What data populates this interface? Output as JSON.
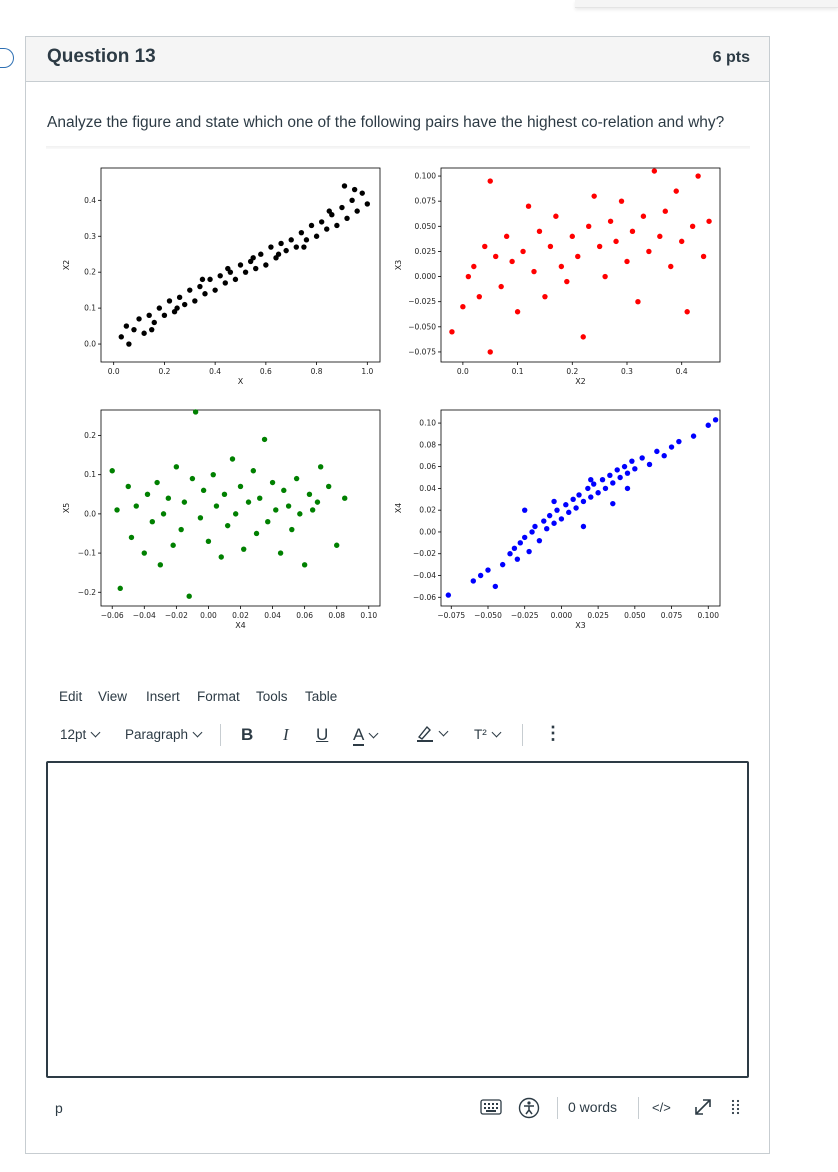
{
  "question": {
    "title": "Question 13",
    "points": "6 pts",
    "text": "Analyze the figure and state which one of the following pairs have the highest co-relation and why?"
  },
  "colors": {
    "black": "#000000",
    "red": "#ff0000",
    "green": "#008000",
    "blue": "#0000ff",
    "text": "#2d3b45",
    "border": "#c7cdd1"
  },
  "chart_data": [
    {
      "type": "scatter",
      "xlabel": "X",
      "ylabel": "X2",
      "color": "#000000",
      "xlim": [
        -0.05,
        1.05
      ],
      "ylim": [
        -0.05,
        0.49
      ],
      "xticks": [
        "0.0",
        "0.2",
        "0.4",
        "0.6",
        "0.8",
        "1.0"
      ],
      "xtick_values": [
        0,
        0.2,
        0.4,
        0.6,
        0.8,
        1.0
      ],
      "yticks": [
        "0.0",
        "0.1",
        "0.2",
        "0.3",
        "0.4"
      ],
      "ytick_values": [
        0,
        0.1,
        0.2,
        0.3,
        0.4
      ],
      "points": [
        [
          0.03,
          0.02
        ],
        [
          0.05,
          0.05
        ],
        [
          0.06,
          0.0
        ],
        [
          0.08,
          0.04
        ],
        [
          0.1,
          0.07
        ],
        [
          0.12,
          0.03
        ],
        [
          0.14,
          0.08
        ],
        [
          0.16,
          0.06
        ],
        [
          0.18,
          0.1
        ],
        [
          0.2,
          0.08
        ],
        [
          0.22,
          0.12
        ],
        [
          0.24,
          0.09
        ],
        [
          0.26,
          0.13
        ],
        [
          0.28,
          0.11
        ],
        [
          0.3,
          0.15
        ],
        [
          0.32,
          0.12
        ],
        [
          0.34,
          0.16
        ],
        [
          0.36,
          0.14
        ],
        [
          0.38,
          0.18
        ],
        [
          0.4,
          0.15
        ],
        [
          0.42,
          0.19
        ],
        [
          0.44,
          0.17
        ],
        [
          0.46,
          0.2
        ],
        [
          0.48,
          0.18
        ],
        [
          0.5,
          0.22
        ],
        [
          0.52,
          0.2
        ],
        [
          0.54,
          0.23
        ],
        [
          0.56,
          0.21
        ],
        [
          0.58,
          0.25
        ],
        [
          0.6,
          0.22
        ],
        [
          0.62,
          0.27
        ],
        [
          0.64,
          0.24
        ],
        [
          0.66,
          0.28
        ],
        [
          0.68,
          0.26
        ],
        [
          0.7,
          0.29
        ],
        [
          0.72,
          0.27
        ],
        [
          0.74,
          0.31
        ],
        [
          0.76,
          0.29
        ],
        [
          0.78,
          0.33
        ],
        [
          0.8,
          0.3
        ],
        [
          0.82,
          0.34
        ],
        [
          0.84,
          0.32
        ],
        [
          0.86,
          0.36
        ],
        [
          0.88,
          0.33
        ],
        [
          0.9,
          0.38
        ],
        [
          0.92,
          0.35
        ],
        [
          0.94,
          0.4
        ],
        [
          0.96,
          0.37
        ],
        [
          0.98,
          0.42
        ],
        [
          1.0,
          0.39
        ],
        [
          0.91,
          0.44
        ],
        [
          0.95,
          0.43
        ],
        [
          0.55,
          0.24
        ],
        [
          0.45,
          0.21
        ],
        [
          0.35,
          0.18
        ],
        [
          0.25,
          0.1
        ],
        [
          0.15,
          0.04
        ],
        [
          0.65,
          0.25
        ],
        [
          0.75,
          0.27
        ],
        [
          0.85,
          0.37
        ]
      ]
    },
    {
      "type": "scatter",
      "xlabel": "X2",
      "ylabel": "X3",
      "color": "#ff0000",
      "xlim": [
        -0.04,
        0.47
      ],
      "ylim": [
        -0.085,
        0.108
      ],
      "xticks": [
        "0.0",
        "0.1",
        "0.2",
        "0.3",
        "0.4"
      ],
      "xtick_values": [
        0,
        0.1,
        0.2,
        0.3,
        0.4
      ],
      "yticks": [
        "0.100",
        "0.075",
        "0.050",
        "0.025",
        "0.000",
        "−0.025",
        "−0.050",
        "−0.075"
      ],
      "ytick_values": [
        0.1,
        0.075,
        0.05,
        0.025,
        0,
        -0.025,
        -0.05,
        -0.075
      ],
      "points": [
        [
          -0.02,
          -0.055
        ],
        [
          0.0,
          -0.03
        ],
        [
          0.01,
          0.0
        ],
        [
          0.02,
          0.01
        ],
        [
          0.03,
          -0.02
        ],
        [
          0.04,
          0.03
        ],
        [
          0.05,
          0.095
        ],
        [
          0.05,
          -0.075
        ],
        [
          0.06,
          0.02
        ],
        [
          0.07,
          -0.01
        ],
        [
          0.08,
          0.04
        ],
        [
          0.09,
          0.015
        ],
        [
          0.1,
          -0.035
        ],
        [
          0.11,
          0.025
        ],
        [
          0.12,
          0.07
        ],
        [
          0.13,
          0.005
        ],
        [
          0.14,
          0.045
        ],
        [
          0.15,
          -0.02
        ],
        [
          0.16,
          0.03
        ],
        [
          0.17,
          0.06
        ],
        [
          0.18,
          0.01
        ],
        [
          0.19,
          -0.005
        ],
        [
          0.2,
          0.04
        ],
        [
          0.21,
          0.02
        ],
        [
          0.22,
          -0.06
        ],
        [
          0.23,
          0.05
        ],
        [
          0.24,
          0.08
        ],
        [
          0.25,
          0.03
        ],
        [
          0.26,
          0.0
        ],
        [
          0.27,
          0.055
        ],
        [
          0.28,
          0.035
        ],
        [
          0.29,
          0.075
        ],
        [
          0.3,
          0.015
        ],
        [
          0.31,
          0.045
        ],
        [
          0.32,
          -0.025
        ],
        [
          0.33,
          0.06
        ],
        [
          0.34,
          0.025
        ],
        [
          0.35,
          0.105
        ],
        [
          0.36,
          0.04
        ],
        [
          0.37,
          0.065
        ],
        [
          0.38,
          0.01
        ],
        [
          0.39,
          0.085
        ],
        [
          0.4,
          0.035
        ],
        [
          0.41,
          -0.035
        ],
        [
          0.42,
          0.05
        ],
        [
          0.43,
          0.1
        ],
        [
          0.44,
          0.02
        ],
        [
          0.45,
          0.055
        ]
      ]
    },
    {
      "type": "scatter",
      "xlabel": "X4",
      "ylabel": "X5",
      "color": "#008000",
      "xlim": [
        -0.067,
        0.107
      ],
      "ylim": [
        -0.235,
        0.265
      ],
      "xticks": [
        "−0.06",
        "−0.04",
        "−0.02",
        "0.00",
        "0.02",
        "0.04",
        "0.06",
        "0.08",
        "0.10"
      ],
      "xtick_values": [
        -0.06,
        -0.04,
        -0.02,
        0,
        0.02,
        0.04,
        0.06,
        0.08,
        0.1
      ],
      "yticks": [
        "0.2",
        "0.1",
        "0.0",
        "−0.1",
        "−0.2"
      ],
      "ytick_values": [
        0.2,
        0.1,
        0,
        -0.1,
        -0.2
      ],
      "points": [
        [
          -0.06,
          0.11
        ],
        [
          -0.057,
          0.01
        ],
        [
          -0.055,
          -0.19
        ],
        [
          -0.05,
          0.07
        ],
        [
          -0.048,
          -0.06
        ],
        [
          -0.045,
          0.02
        ],
        [
          -0.04,
          -0.1
        ],
        [
          -0.038,
          0.05
        ],
        [
          -0.035,
          -0.02
        ],
        [
          -0.032,
          0.08
        ],
        [
          -0.03,
          -0.13
        ],
        [
          -0.028,
          0.0
        ],
        [
          -0.025,
          0.04
        ],
        [
          -0.022,
          -0.08
        ],
        [
          -0.02,
          0.12
        ],
        [
          -0.017,
          -0.04
        ],
        [
          -0.015,
          0.03
        ],
        [
          -0.012,
          -0.21
        ],
        [
          -0.01,
          0.09
        ],
        [
          -0.008,
          0.26
        ],
        [
          -0.005,
          -0.01
        ],
        [
          -0.003,
          0.06
        ],
        [
          0.0,
          -0.07
        ],
        [
          0.003,
          0.1
        ],
        [
          0.005,
          0.02
        ],
        [
          0.008,
          -0.11
        ],
        [
          0.01,
          0.05
        ],
        [
          0.012,
          -0.03
        ],
        [
          0.015,
          0.14
        ],
        [
          0.017,
          0.0
        ],
        [
          0.02,
          0.07
        ],
        [
          0.022,
          -0.09
        ],
        [
          0.025,
          0.03
        ],
        [
          0.028,
          0.11
        ],
        [
          0.03,
          -0.05
        ],
        [
          0.032,
          0.04
        ],
        [
          0.035,
          0.19
        ],
        [
          0.037,
          -0.02
        ],
        [
          0.04,
          0.08
        ],
        [
          0.042,
          0.01
        ],
        [
          0.045,
          -0.1
        ],
        [
          0.047,
          0.06
        ],
        [
          0.05,
          0.02
        ],
        [
          0.052,
          -0.04
        ],
        [
          0.055,
          0.09
        ],
        [
          0.057,
          0.0
        ],
        [
          0.06,
          -0.13
        ],
        [
          0.063,
          0.05
        ],
        [
          0.065,
          0.01
        ],
        [
          0.068,
          0.03
        ],
        [
          0.07,
          0.12
        ],
        [
          0.075,
          0.07
        ],
        [
          0.08,
          -0.08
        ],
        [
          0.085,
          0.04
        ]
      ]
    },
    {
      "type": "scatter",
      "xlabel": "X3",
      "ylabel": "X4",
      "color": "#0000ff",
      "xlim": [
        -0.082,
        0.108
      ],
      "ylim": [
        -0.068,
        0.112
      ],
      "xticks": [
        "−0.075",
        "−0.050",
        "−0.025",
        "0.000",
        "0.025",
        "0.050",
        "0.075",
        "0.100"
      ],
      "xtick_values": [
        -0.075,
        -0.05,
        -0.025,
        0,
        0.025,
        0.05,
        0.075,
        0.1
      ],
      "yticks": [
        "0.10",
        "0.08",
        "0.06",
        "0.04",
        "0.02",
        "0.00",
        "−0.02",
        "−0.04",
        "−0.06"
      ],
      "ytick_values": [
        0.1,
        0.08,
        0.06,
        0.04,
        0.02,
        0,
        -0.02,
        -0.04,
        -0.06
      ],
      "points": [
        [
          -0.077,
          -0.058
        ],
        [
          -0.06,
          -0.045
        ],
        [
          -0.055,
          -0.04
        ],
        [
          -0.05,
          -0.035
        ],
        [
          -0.045,
          -0.05
        ],
        [
          -0.04,
          -0.03
        ],
        [
          -0.035,
          -0.02
        ],
        [
          -0.032,
          -0.015
        ],
        [
          -0.03,
          -0.025
        ],
        [
          -0.028,
          -0.01
        ],
        [
          -0.025,
          -0.005
        ],
        [
          -0.022,
          -0.018
        ],
        [
          -0.02,
          0.0
        ],
        [
          -0.018,
          0.005
        ],
        [
          -0.015,
          -0.008
        ],
        [
          -0.012,
          0.01
        ],
        [
          -0.01,
          0.003
        ],
        [
          -0.008,
          0.015
        ],
        [
          -0.005,
          0.008
        ],
        [
          -0.003,
          0.02
        ],
        [
          0.0,
          0.012
        ],
        [
          0.003,
          0.025
        ],
        [
          0.005,
          0.018
        ],
        [
          0.008,
          0.03
        ],
        [
          0.01,
          0.022
        ],
        [
          0.012,
          0.034
        ],
        [
          0.015,
          0.028
        ],
        [
          0.018,
          0.04
        ],
        [
          0.02,
          0.032
        ],
        [
          0.022,
          0.044
        ],
        [
          0.025,
          0.036
        ],
        [
          0.028,
          0.048
        ],
        [
          0.03,
          0.04
        ],
        [
          0.033,
          0.052
        ],
        [
          0.035,
          0.045
        ],
        [
          0.038,
          0.057
        ],
        [
          0.04,
          0.05
        ],
        [
          0.043,
          0.06
        ],
        [
          0.045,
          0.054
        ],
        [
          0.048,
          0.065
        ],
        [
          0.05,
          0.058
        ],
        [
          0.055,
          0.068
        ],
        [
          0.06,
          0.062
        ],
        [
          0.065,
          0.074
        ],
        [
          0.07,
          0.07
        ],
        [
          0.075,
          0.078
        ],
        [
          0.08,
          0.083
        ],
        [
          0.09,
          0.088
        ],
        [
          0.1,
          0.098
        ],
        [
          0.105,
          0.103
        ],
        [
          -0.005,
          0.028
        ],
        [
          0.02,
          0.048
        ],
        [
          0.035,
          0.026
        ],
        [
          -0.025,
          0.02
        ],
        [
          0.015,
          0.005
        ],
        [
          0.045,
          0.04
        ]
      ]
    }
  ],
  "editor": {
    "menu": [
      "Edit",
      "View",
      "Insert",
      "Format",
      "Tools",
      "Table"
    ],
    "font_size": "12pt",
    "block_format": "Paragraph",
    "bold": "B",
    "italic": "I",
    "underline": "U",
    "text_color": "A",
    "superscript": "T²",
    "more": "⋮",
    "status_path": "p",
    "word_count": "0 words",
    "html_toggle": "</>"
  }
}
